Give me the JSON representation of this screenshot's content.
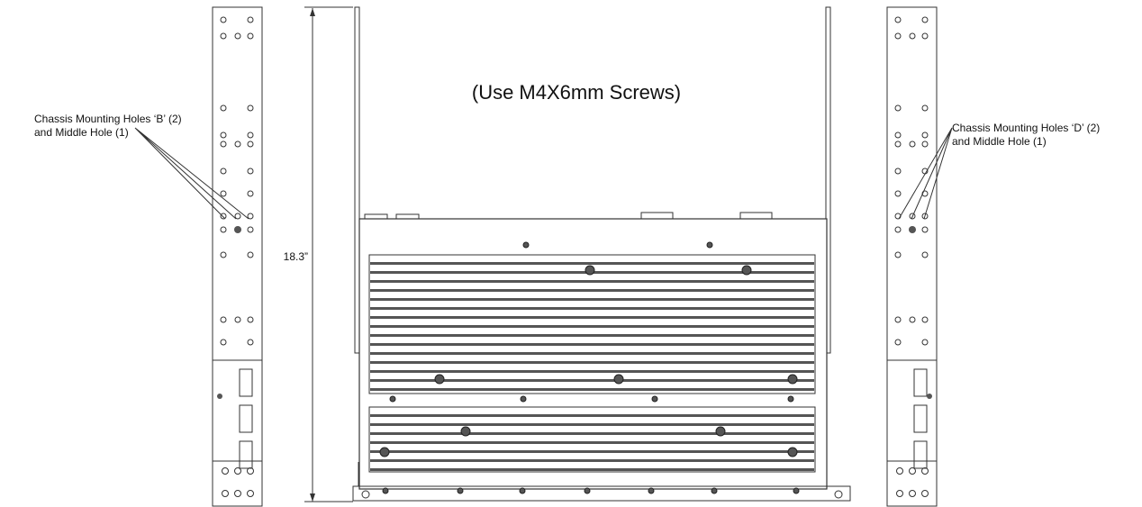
{
  "title": "(Use M4X6mm Screws)",
  "dimension": "18.3”",
  "callouts": [
    {
      "lines": [
        "Chassis Mounting Holes ‘B’ (2)",
        "and Middle Hole (1)"
      ]
    },
    {
      "lines": [
        "Chassis Mounting Holes ‘D’ (2)",
        "and Middle Hole (1)"
      ]
    }
  ]
}
